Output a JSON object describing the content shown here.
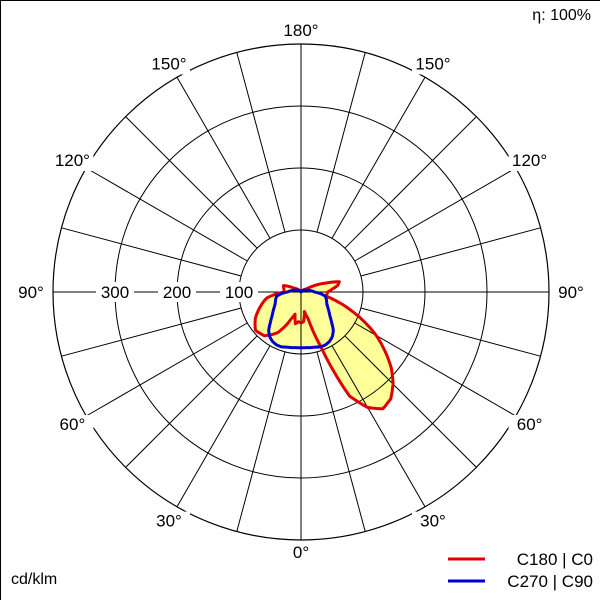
{
  "header": {
    "efficiency_symbol": "η",
    "efficiency_value": "100%"
  },
  "footer": {
    "unit_label": "cd/klm"
  },
  "chart_data": {
    "type": "polar",
    "title": "",
    "radial_unit": "cd/klm",
    "radial_max": 400,
    "radial_ticks": [
      100,
      200,
      300
    ],
    "radial_tick_labels": [
      "100",
      "200",
      "300"
    ],
    "angle_step_deg": 15,
    "angle_labels": [
      {
        "text": "180°",
        "angle": 180,
        "side": "center"
      },
      {
        "text": "150°",
        "angle": 150,
        "side": "left"
      },
      {
        "text": "150°",
        "angle": 150,
        "side": "right"
      },
      {
        "text": "120°",
        "angle": 120,
        "side": "left"
      },
      {
        "text": "120°",
        "angle": 120,
        "side": "right"
      },
      {
        "text": "90°",
        "angle": 90,
        "side": "left"
      },
      {
        "text": "90°",
        "angle": 90,
        "side": "right"
      },
      {
        "text": "60°",
        "angle": 60,
        "side": "left"
      },
      {
        "text": "60°",
        "angle": 60,
        "side": "right"
      },
      {
        "text": "30°",
        "angle": 30,
        "side": "left"
      },
      {
        "text": "30°",
        "angle": 30,
        "side": "right"
      },
      {
        "text": "0°",
        "angle": 0,
        "side": "center"
      }
    ],
    "series": [
      {
        "name": "C180 | C0",
        "color": "#e00000",
        "fill": "#ffff99",
        "curve_right": [
          [
            0,
            50
          ],
          [
            5,
            48
          ],
          [
            10,
            32
          ],
          [
            15,
            45
          ],
          [
            20,
            95
          ],
          [
            25,
            185
          ],
          [
            30,
            215
          ],
          [
            35,
            230
          ],
          [
            40,
            225
          ],
          [
            45,
            210
          ],
          [
            50,
            190
          ],
          [
            55,
            165
          ],
          [
            60,
            140
          ],
          [
            65,
            112
          ],
          [
            70,
            85
          ],
          [
            75,
            62
          ],
          [
            80,
            42
          ],
          [
            85,
            42
          ],
          [
            90,
            43
          ],
          [
            95,
            50
          ],
          [
            100,
            60
          ],
          [
            105,
            64
          ],
          [
            110,
            42
          ],
          [
            120,
            10
          ],
          [
            135,
            3
          ],
          [
            180,
            0
          ]
        ],
        "curve_left": [
          [
            0,
            50
          ],
          [
            5,
            48
          ],
          [
            10,
            52
          ],
          [
            15,
            37
          ],
          [
            20,
            46
          ],
          [
            30,
            76
          ],
          [
            40,
            92
          ],
          [
            50,
            96
          ],
          [
            60,
            85
          ],
          [
            70,
            70
          ],
          [
            80,
            56
          ],
          [
            90,
            27
          ],
          [
            100,
            28
          ],
          [
            110,
            30
          ],
          [
            120,
            12
          ],
          [
            135,
            4
          ],
          [
            180,
            0
          ]
        ]
      },
      {
        "name": "C270 | C90",
        "color": "#0000cc",
        "fill": "#ffff99",
        "curve": [
          [
            0,
            90
          ],
          [
            5,
            90
          ],
          [
            10,
            91
          ],
          [
            15,
            92
          ],
          [
            20,
            94
          ],
          [
            25,
            94
          ],
          [
            30,
            92
          ],
          [
            35,
            88
          ],
          [
            40,
            81
          ],
          [
            45,
            70
          ],
          [
            50,
            61
          ],
          [
            55,
            55
          ],
          [
            60,
            50
          ],
          [
            65,
            46
          ],
          [
            70,
            44
          ],
          [
            75,
            42
          ],
          [
            80,
            40
          ],
          [
            85,
            32
          ],
          [
            90,
            22
          ],
          [
            100,
            14
          ],
          [
            110,
            9
          ],
          [
            120,
            6
          ],
          [
            135,
            3
          ],
          [
            150,
            1
          ],
          [
            180,
            0
          ]
        ]
      }
    ],
    "legend": "bottom-right"
  }
}
